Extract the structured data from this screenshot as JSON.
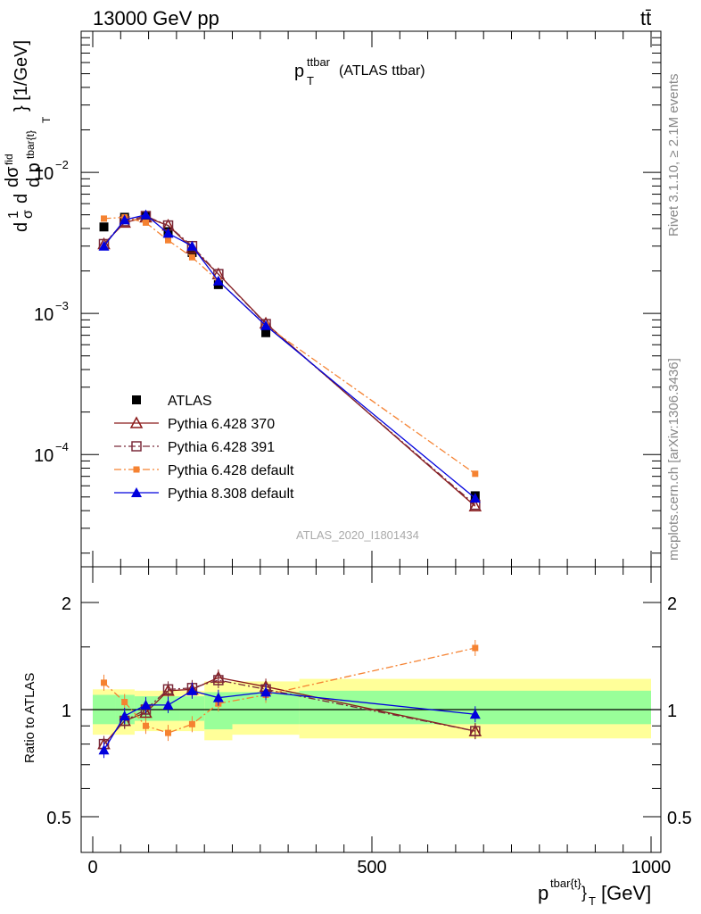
{
  "header": {
    "left": "13000 GeV pp",
    "right": "tt̄"
  },
  "side_labels": {
    "rivet": "Rivet 3.1.10, ≥ 2.1M events",
    "mcplots": "mcplots.cern.ch [arXiv:1306.3436]"
  },
  "chart_data": {
    "type": "line",
    "title_main": "p",
    "title_sup": "ttbar",
    "title_sub": "T",
    "title_rest": " (ATLAS ttbar)",
    "watermark": "ATLAS_2020_I1801434",
    "y_scale": "log",
    "ylim": [
      1.6e-05,
      0.1
    ],
    "xlim": [
      -10,
      1010
    ],
    "x_ticks": [
      0,
      500,
      1000
    ],
    "y_ticks": [
      "10^{-4}",
      "10^{-3}",
      "10^{-2}"
    ],
    "ylabel_upper": "d1dσ dσ/d p ttbar{t} } [1/GeV]",
    "ylabel_ratio": "Ratio to ATLAS",
    "xlabel": "p^{tbar{t}}_T [GeV]",
    "ratio_ylim": [
      0.4,
      2.3
    ],
    "ratio_ticks": [
      "0.5",
      "1",
      "2"
    ],
    "x": [
      20,
      57,
      95,
      135,
      178,
      225,
      310,
      685
    ],
    "bin_edges": [
      0,
      40,
      75,
      115,
      155,
      200,
      250,
      370,
      1000
    ],
    "legend_position": "lower-left",
    "series": [
      {
        "name": "ATLAS",
        "color": "#000000",
        "marker": "square",
        "values": [
          0.0041,
          0.0048,
          0.0049,
          0.0038,
          0.0027,
          0.0016,
          0.00073,
          5.1e-05
        ]
      },
      {
        "name": "Pythia 6.428 370",
        "color": "#8b1a1a",
        "marker": "triangle-open",
        "line": "solid",
        "values": [
          0.0031,
          0.0044,
          0.0048,
          0.0042,
          0.0029,
          0.0019,
          0.00085,
          4.3e-05
        ],
        "ratio": [
          0.8,
          0.93,
          0.98,
          1.13,
          1.14,
          1.23,
          1.16,
          0.87
        ]
      },
      {
        "name": "Pythia 6.428 391",
        "color": "#7a2a3a",
        "marker": "square-open",
        "line": "dashdot",
        "values": [
          0.0031,
          0.0045,
          0.0049,
          0.0042,
          0.003,
          0.0019,
          0.00084,
          4.4e-05
        ],
        "ratio": [
          0.8,
          0.93,
          1.0,
          1.14,
          1.15,
          1.21,
          1.14,
          0.87
        ]
      },
      {
        "name": "Pythia 6.428 default",
        "color": "#f58231",
        "marker": "square",
        "line": "dashdot",
        "values": [
          0.0047,
          0.0048,
          0.0044,
          0.0033,
          0.0025,
          0.0017,
          0.00082,
          7.3e-05
        ],
        "ratio": [
          1.19,
          1.05,
          0.9,
          0.86,
          0.91,
          1.04,
          1.1,
          1.49
        ]
      },
      {
        "name": "Pythia 8.308 default",
        "color": "#0000dd",
        "marker": "triangle",
        "line": "solid",
        "values": [
          0.003,
          0.0046,
          0.005,
          0.0037,
          0.003,
          0.0017,
          0.00082,
          4.9e-05
        ],
        "ratio": [
          0.77,
          0.96,
          1.03,
          1.03,
          1.13,
          1.08,
          1.12,
          0.97
        ]
      }
    ],
    "ratio_band_inner": [
      0.91,
      0.91,
      0.93,
      0.93,
      0.93,
      0.88,
      0.91,
      0.91
    ],
    "ratio_band_inner_hi": [
      1.1,
      1.1,
      1.09,
      1.09,
      1.09,
      1.12,
      1.12,
      1.13
    ],
    "ratio_band_outer": [
      0.85,
      0.85,
      0.87,
      0.87,
      0.87,
      0.82,
      0.85,
      0.83
    ],
    "ratio_band_outer_hi": [
      1.14,
      1.14,
      1.13,
      1.13,
      1.13,
      1.2,
      1.2,
      1.22
    ]
  }
}
